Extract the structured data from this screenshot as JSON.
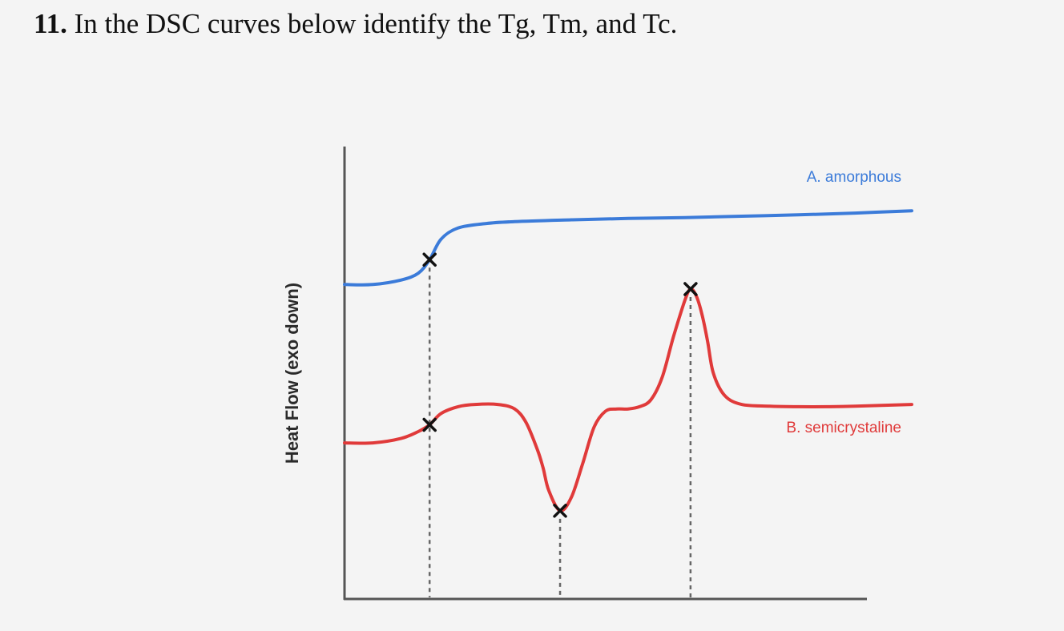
{
  "question": {
    "number": "11.",
    "text": "In the DSC curves below identify the Tg, Tm, and Tc."
  },
  "chart_data": {
    "type": "line",
    "title": "",
    "xlabel": "",
    "ylabel": "Heat Flow (exo down)",
    "grid": false,
    "xlim": [
      0,
      100
    ],
    "ylim": [
      0,
      100
    ],
    "series": [
      {
        "name": "A. amorphous",
        "color": "#3b7bd9",
        "x": [
          0,
          5,
          10,
          13,
          15,
          17,
          20,
          25,
          30,
          40,
          50,
          60,
          70,
          80,
          90,
          100
        ],
        "y": [
          69.5,
          69.5,
          70.5,
          72,
          75,
          79.5,
          82,
          83,
          83.4,
          83.8,
          84.1,
          84.3,
          84.6,
          84.9,
          85.3,
          85.8
        ]
      },
      {
        "name": "B. semicrystaline",
        "color": "#e03a3a",
        "x": [
          0,
          5,
          10,
          13,
          15,
          17,
          20,
          23,
          27,
          30,
          32,
          34,
          35,
          36,
          38,
          40,
          42,
          44,
          46,
          48,
          50,
          52,
          54,
          56,
          58,
          60,
          61,
          62,
          63,
          64,
          65,
          67,
          70,
          75,
          80,
          85,
          90,
          100
        ],
        "y": [
          34.5,
          34.5,
          35.5,
          37,
          38.5,
          41,
          42.5,
          43,
          43,
          42,
          39,
          33,
          29,
          24,
          19.5,
          22.5,
          30,
          38,
          41.5,
          42,
          42,
          42.5,
          44,
          49,
          58,
          66,
          68.5,
          67,
          63,
          57,
          50,
          45,
          43,
          42.6,
          42.5,
          42.5,
          42.6,
          43
        ]
      }
    ],
    "markers": [
      {
        "series": 0,
        "x": 15,
        "y": 75
      },
      {
        "series": 1,
        "x": 15,
        "y": 38.5
      },
      {
        "series": 1,
        "x": 38,
        "y": 19.5
      },
      {
        "series": 1,
        "x": 61,
        "y": 68.5
      }
    ]
  }
}
